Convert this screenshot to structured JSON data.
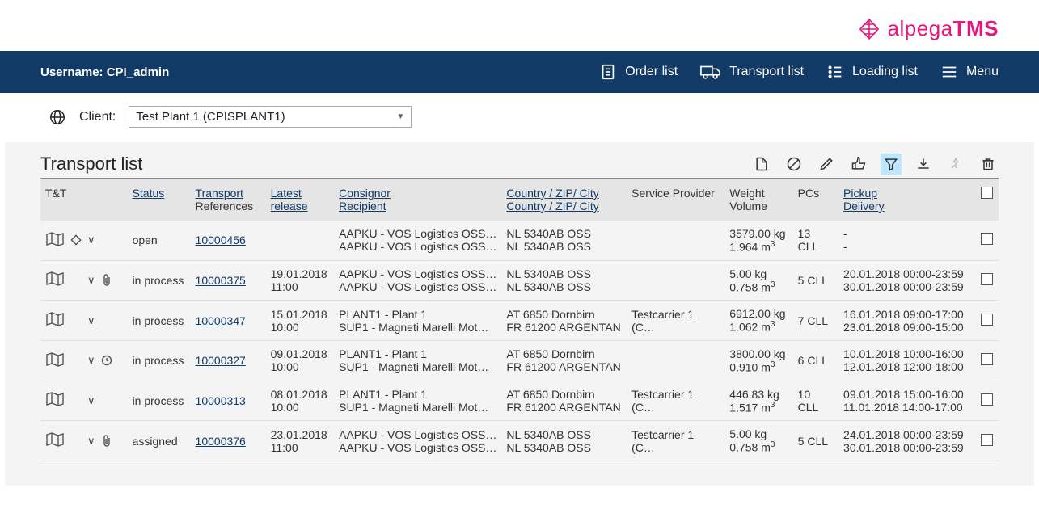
{
  "brand": {
    "name_light": "alpega",
    "name_bold": "TMS",
    "color": "#e6167a"
  },
  "topbar": {
    "username_label": "Username:",
    "username": "CPI_admin",
    "nav": {
      "order_list": "Order list",
      "transport_list": "Transport list",
      "loading_list": "Loading list",
      "menu": "Menu"
    }
  },
  "client": {
    "label": "Client:",
    "selected": "Test Plant 1 (CPISPLANT1)"
  },
  "list": {
    "title": "Transport list",
    "columns": {
      "tt": "T&T",
      "status": "Status",
      "transport": "Transport",
      "references": "References",
      "latest": "Latest",
      "release": "release",
      "consignor": "Consignor",
      "recipient": "Recipient",
      "country_zip_city": "Country / ZIP/ City",
      "service_provider": "Service Provider",
      "weight": "Weight",
      "volume": "Volume",
      "pcs": "PCs",
      "pickup": "Pickup",
      "delivery": "Delivery"
    },
    "rows": [
      {
        "has_diamond": true,
        "has_clip": false,
        "has_clock": false,
        "status": "open",
        "ref": "10000456",
        "release_date": "",
        "release_time": "",
        "consignor": "AAPKU - VOS Logistics OSS…",
        "recipient": "AAPKU - VOS Logistics OSS…",
        "ctry1": "NL 5340AB OSS",
        "ctry2": "NL 5340AB OSS",
        "sp": "",
        "weight": "3579.00 kg",
        "volume": "1.964 m³",
        "pcs": "13 CLL",
        "pickup": "-",
        "delivery": "-"
      },
      {
        "has_diamond": false,
        "has_clip": true,
        "has_clock": false,
        "status": "in process",
        "ref": "10000375",
        "release_date": "19.01.2018",
        "release_time": "11:00",
        "consignor": "AAPKU - VOS Logistics OSS…",
        "recipient": "AAPKU - VOS Logistics OSS…",
        "ctry1": "NL 5340AB OSS",
        "ctry2": "NL 5340AB OSS",
        "sp": "",
        "weight": "5.00 kg",
        "volume": "0.758 m³",
        "pcs": "5 CLL",
        "pickup": "20.01.2018 00:00-23:59",
        "delivery": "30.01.2018 00:00-23:59"
      },
      {
        "has_diamond": false,
        "has_clip": false,
        "has_clock": false,
        "status": "in process",
        "ref": "10000347",
        "release_date": "15.01.2018",
        "release_time": "10:00",
        "consignor": "PLANT1 - Plant 1",
        "recipient": "SUP1 - Magneti Marelli Mot…",
        "ctry1": "AT 6850 Dornbirn",
        "ctry2": "FR 61200 ARGENTAN",
        "sp": "Testcarrier 1 (C…",
        "weight": "6912.00 kg",
        "volume": "1.062 m³",
        "pcs": "7 CLL",
        "pickup": "16.01.2018 09:00-17:00",
        "delivery": "23.01.2018 09:00-15:00"
      },
      {
        "has_diamond": false,
        "has_clip": false,
        "has_clock": true,
        "status": "in process",
        "ref": "10000327",
        "release_date": "09.01.2018",
        "release_time": "10:00",
        "consignor": "PLANT1 - Plant 1",
        "recipient": "SUP1 - Magneti Marelli Mot…",
        "ctry1": "AT 6850 Dornbirn",
        "ctry2": "FR 61200 ARGENTAN",
        "sp": "",
        "weight": "3800.00 kg",
        "volume": "0.910 m³",
        "pcs": "6 CLL",
        "pickup": "10.01.2018 10:00-16:00",
        "delivery": "12.01.2018 12:00-18:00"
      },
      {
        "has_diamond": false,
        "has_clip": false,
        "has_clock": false,
        "status": "in process",
        "ref": "10000313",
        "release_date": "08.01.2018",
        "release_time": "10:00",
        "consignor": "PLANT1 - Plant 1",
        "recipient": "SUP1 - Magneti Marelli Mot…",
        "ctry1": "AT 6850 Dornbirn",
        "ctry2": "FR 61200 ARGENTAN",
        "sp": "Testcarrier 1 (C…",
        "weight": "446.83 kg",
        "volume": "1.517 m³",
        "pcs": "10 CLL",
        "pickup": "09.01.2018 15:00-16:00",
        "delivery": "11.01.2018 14:00-17:00"
      },
      {
        "has_diamond": false,
        "has_clip": true,
        "has_clock": false,
        "status": "assigned",
        "ref": "10000376",
        "release_date": "23.01.2018",
        "release_time": "11:00",
        "consignor": "AAPKU - VOS Logistics OSS…",
        "recipient": "AAPKU - VOS Logistics OSS…",
        "ctry1": "NL 5340AB OSS",
        "ctry2": "NL 5340AB OSS",
        "sp": "Testcarrier 1 (C…",
        "weight": "5.00 kg",
        "volume": "0.758 m³",
        "pcs": "5 CLL",
        "pickup": "24.01.2018 00:00-23:59",
        "delivery": "30.01.2018 00:00-23:59"
      }
    ]
  },
  "colors": {
    "topbar_bg": "#123a66",
    "content_bg": "#f4f4f4",
    "thead_bg": "#e5e5e5",
    "filter_active_bg": "#bfe6ff"
  }
}
